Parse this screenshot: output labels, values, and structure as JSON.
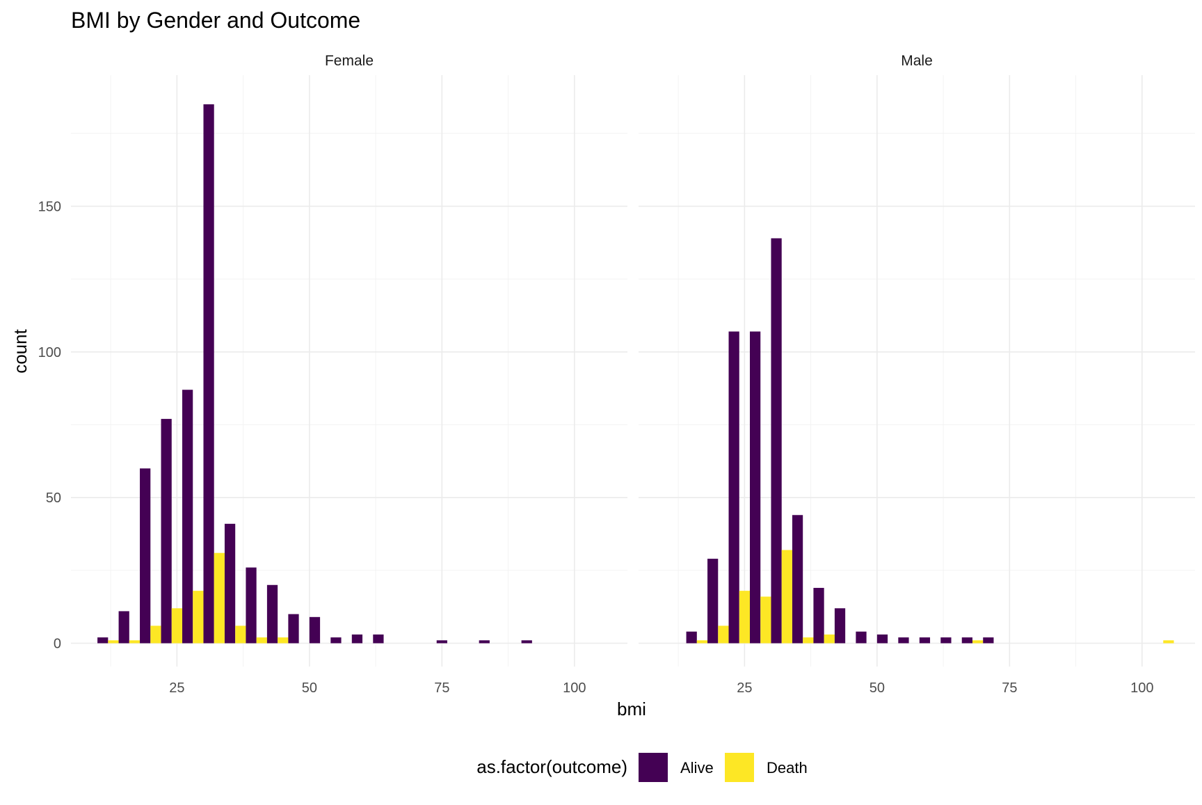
{
  "chart_data": {
    "type": "bar",
    "title": "BMI by Gender and Outcome",
    "xlabel": "bmi",
    "ylabel": "count",
    "xlim": [
      5,
      110
    ],
    "ylim": [
      -8,
      195
    ],
    "x_ticks": [
      25,
      50,
      75,
      100
    ],
    "y_ticks": [
      0,
      50,
      100,
      150
    ],
    "grid": true,
    "legend": {
      "title": "as.factor(outcome)",
      "placement": "bottom",
      "entries": [
        {
          "name": "Alive",
          "color": "#440154"
        },
        {
          "name": "Death",
          "color": "#FDE725"
        }
      ]
    },
    "bin_width": 4,
    "panels": [
      {
        "name": "Female",
        "bin_centers": [
          12,
          16,
          20,
          24,
          28,
          32,
          36,
          40,
          44,
          48,
          52,
          56,
          60,
          64,
          68,
          72,
          76,
          80,
          84,
          88,
          92
        ],
        "series": [
          {
            "name": "Alive",
            "values": [
              2,
              11,
              60,
              77,
              87,
              185,
              41,
              26,
              20,
              10,
              9,
              2,
              3,
              3,
              0,
              0,
              1,
              0,
              1,
              0,
              1
            ]
          },
          {
            "name": "Death",
            "values": [
              1,
              1,
              6,
              12,
              18,
              31,
              6,
              2,
              2,
              0,
              0,
              0,
              0,
              0,
              0,
              0,
              0,
              0,
              0,
              0,
              0
            ]
          }
        ]
      },
      {
        "name": "Male",
        "bin_centers": [
          16,
          20,
          24,
          28,
          32,
          36,
          40,
          44,
          48,
          52,
          56,
          60,
          64,
          68,
          72,
          76,
          80,
          84,
          88,
          92,
          96,
          100,
          104
        ],
        "series": [
          {
            "name": "Alive",
            "values": [
              4,
              29,
              107,
              107,
              139,
              44,
              19,
              12,
              4,
              3,
              2,
              2,
              2,
              2,
              2,
              0,
              0,
              0,
              0,
              0,
              0,
              0,
              0
            ]
          },
          {
            "name": "Death",
            "values": [
              1,
              6,
              18,
              16,
              32,
              2,
              3,
              0,
              0,
              0,
              0,
              0,
              0,
              1,
              0,
              0,
              0,
              0,
              0,
              0,
              0,
              0,
              1
            ]
          }
        ]
      }
    ]
  }
}
